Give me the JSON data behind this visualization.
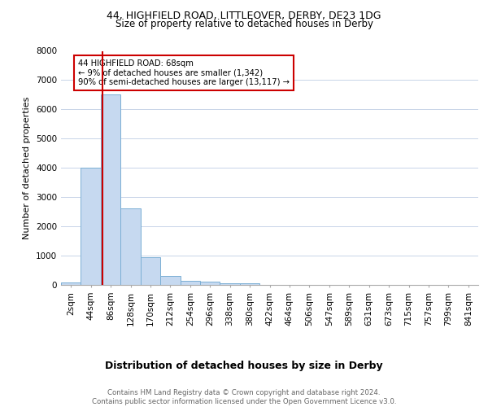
{
  "title_line1": "44, HIGHFIELD ROAD, LITTLEOVER, DERBY, DE23 1DG",
  "title_line2": "Size of property relative to detached houses in Derby",
  "xlabel": "Distribution of detached houses by size in Derby",
  "ylabel": "Number of detached properties",
  "footnote": "Contains HM Land Registry data © Crown copyright and database right 2024.\nContains public sector information licensed under the Open Government Licence v3.0.",
  "bar_labels": [
    "2sqm",
    "44sqm",
    "86sqm",
    "128sqm",
    "170sqm",
    "212sqm",
    "254sqm",
    "296sqm",
    "338sqm",
    "380sqm",
    "422sqm",
    "464sqm",
    "506sqm",
    "547sqm",
    "589sqm",
    "631sqm",
    "673sqm",
    "715sqm",
    "757sqm",
    "799sqm",
    "841sqm"
  ],
  "bar_values": [
    80,
    4000,
    6500,
    2620,
    960,
    310,
    130,
    100,
    60,
    50,
    0,
    0,
    0,
    0,
    0,
    0,
    0,
    0,
    0,
    0,
    0
  ],
  "bar_color": "#c6d9f0",
  "bar_edge_color": "#7bafd4",
  "property_line_color": "#cc0000",
  "annotation_text": "44 HIGHFIELD ROAD: 68sqm\n← 9% of detached houses are smaller (1,342)\n90% of semi-detached houses are larger (13,117) →",
  "annotation_box_color": "#ffffff",
  "annotation_box_edge_color": "#cc0000",
  "ylim": [
    0,
    8000
  ],
  "yticks": [
    0,
    1000,
    2000,
    3000,
    4000,
    5000,
    6000,
    7000,
    8000
  ],
  "grid_color": "#c8d4e8",
  "bg_color": "#ffffff",
  "title1_fontsize": 9,
  "title2_fontsize": 8.5,
  "xlabel_fontsize": 9,
  "ylabel_fontsize": 8,
  "tick_fontsize": 7.5,
  "footnote_fontsize": 6.2,
  "footnote_color": "#666666"
}
